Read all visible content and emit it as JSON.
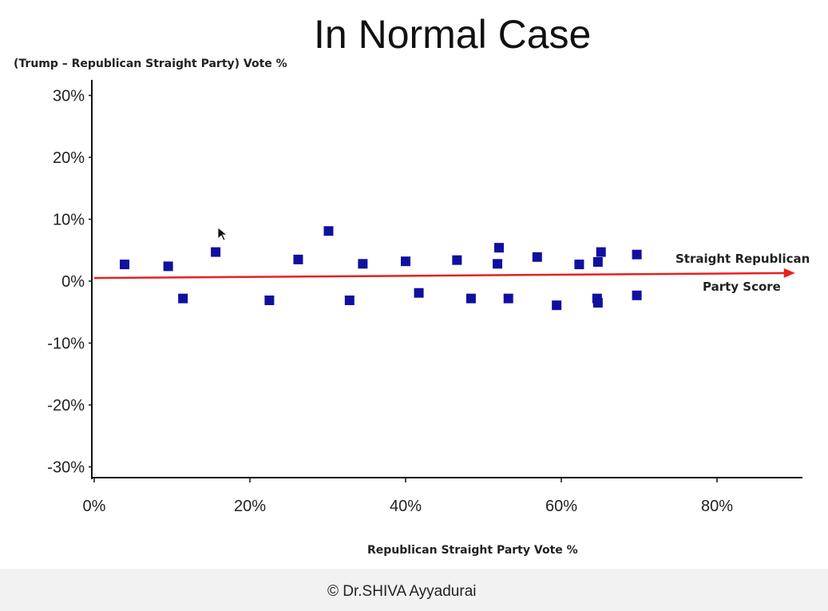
{
  "chart_data": {
    "type": "scatter",
    "title": "In Normal Case",
    "xlabel": "Republican Straight Party Vote %",
    "ylabel": "(Trump – Republican Straight Party) Vote %",
    "xlim": [
      0,
      91
    ],
    "ylim": [
      -30,
      30
    ],
    "xticks": [
      "0%",
      "20%",
      "40%",
      "60%",
      "80%"
    ],
    "xtick_values": [
      0,
      20,
      40,
      60,
      80
    ],
    "yticks": [
      "30%",
      "20%",
      "10%",
      "0%",
      "-10%",
      "-20%",
      "-30%"
    ],
    "ytick_values": [
      30,
      20,
      10,
      0,
      -10,
      -20,
      -30
    ],
    "grid": false,
    "marker_color": "#1010a0",
    "trend_color": "#e82020",
    "points": [
      [
        3.9,
        2.7
      ],
      [
        9.5,
        2.4
      ],
      [
        11.4,
        -2.8
      ],
      [
        15.6,
        4.7
      ],
      [
        22.5,
        -3.1
      ],
      [
        26.2,
        3.5
      ],
      [
        30.1,
        8.1
      ],
      [
        32.8,
        -3.1
      ],
      [
        34.5,
        2.8
      ],
      [
        40.0,
        3.2
      ],
      [
        41.7,
        -1.9
      ],
      [
        46.6,
        3.4
      ],
      [
        48.4,
        -2.8
      ],
      [
        51.8,
        2.8
      ],
      [
        52.0,
        5.4
      ],
      [
        53.2,
        -2.8
      ],
      [
        56.9,
        3.9
      ],
      [
        59.4,
        -3.9
      ],
      [
        62.3,
        2.7
      ],
      [
        64.6,
        -2.8
      ],
      [
        64.7,
        -3.5
      ],
      [
        64.7,
        3.1
      ],
      [
        65.1,
        4.7
      ],
      [
        69.7,
        4.3
      ],
      [
        69.7,
        -2.3
      ]
    ],
    "trend_line": {
      "start": [
        0,
        0.5
      ],
      "end": [
        89,
        1.3
      ]
    },
    "annotation": [
      "Straight Republican",
      "Party Score"
    ]
  },
  "footer": {
    "copyright": "© Dr.SHIVA Ayyadurai"
  }
}
